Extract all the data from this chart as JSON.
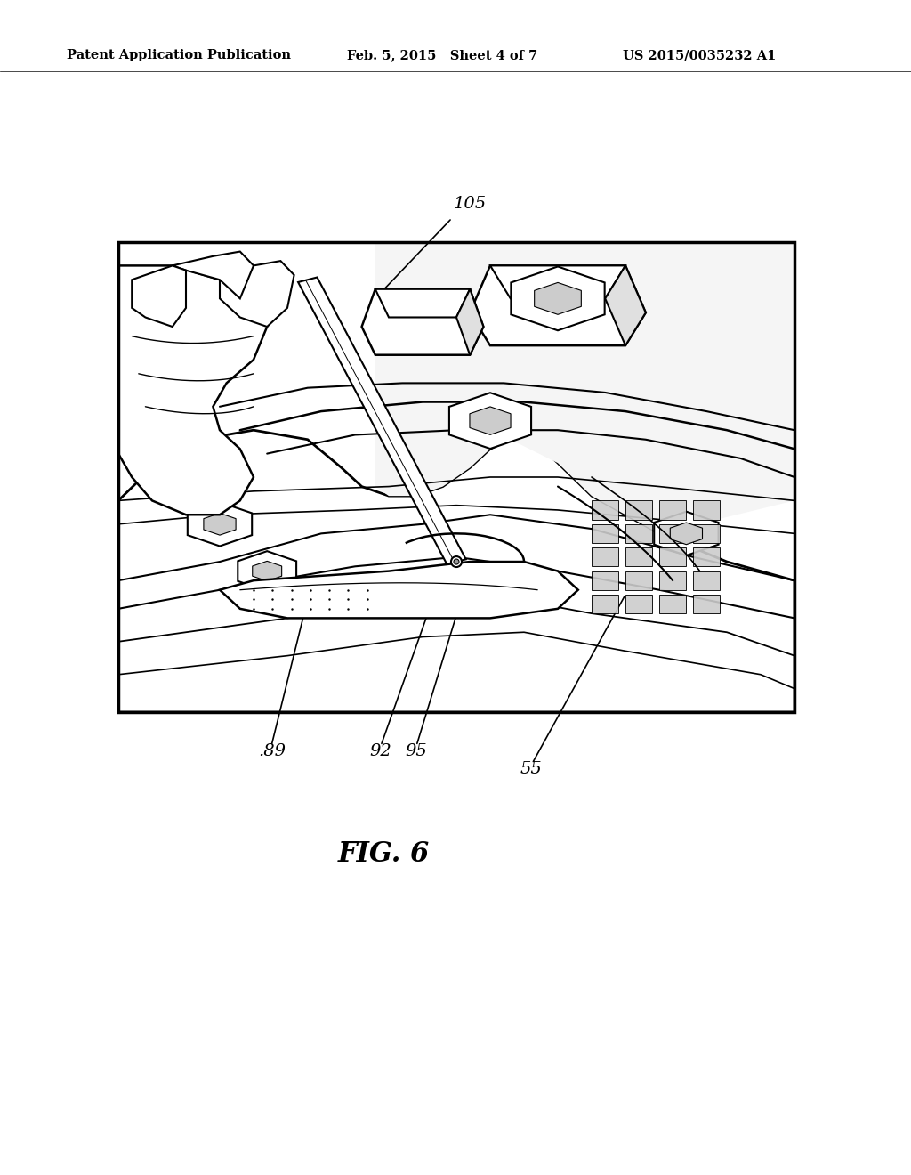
{
  "background_color": "#ffffff",
  "header_left": "Patent Application Publication",
  "header_center": "Feb. 5, 2015   Sheet 4 of 7",
  "header_right": "US 2015/0035232 A1",
  "fig_caption": "FIG. 6",
  "label_105": "105",
  "label_89": ".89",
  "label_92": "92",
  "label_95": "95",
  "label_55": "55"
}
